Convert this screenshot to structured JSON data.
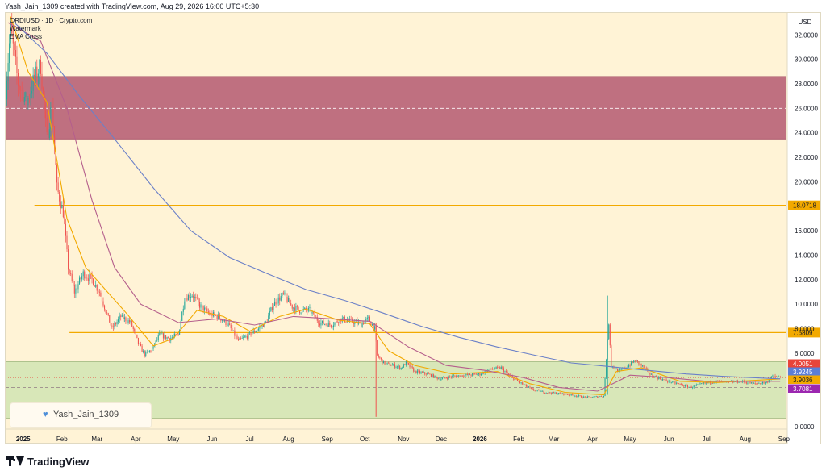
{
  "header": {
    "text": "Yash_Jain_1309 created with TradingView.com, Aug 29, 2026 16:00 UTC+5:30"
  },
  "indicators": {
    "symbol_line": "ORDIUSD · 1D · Crypto.com",
    "line2": "Watermark",
    "line3": "EMA Cross"
  },
  "currency": "USD",
  "author_badge": {
    "icon": "heart-icon",
    "name": "Yash_Jain_1309"
  },
  "footer": {
    "logo": "tradingview-logo-icon",
    "brand": "TradingView"
  },
  "chart_data": {
    "type": "candlestick",
    "symbol": "ORDIUSD",
    "timeframe": "1D",
    "xlim": [
      "2024-12-18",
      "2026-09-03"
    ],
    "ylim": [
      -0.2,
      33.8
    ],
    "y_ticks": [
      0,
      2,
      4,
      6,
      8,
      10,
      12,
      14,
      16,
      18,
      20,
      22,
      24,
      26,
      28,
      30,
      32
    ],
    "y_tick_labels": [
      "0.0000",
      "",
      "",
      "6.0000",
      "8.0000",
      "10.0000",
      "12.0000",
      "14.0000",
      "16.0000",
      "",
      "20.0000",
      "22.0000",
      "24.0000",
      "26.0000",
      "28.0000",
      "30.0000",
      "32.0000"
    ],
    "x_ticks": [
      {
        "label": "2025",
        "date": "2025-01-01"
      },
      {
        "label": "Feb",
        "date": "2025-02-01"
      },
      {
        "label": "Mar",
        "date": "2025-03-01"
      },
      {
        "label": "Apr",
        "date": "2025-04-01"
      },
      {
        "label": "May",
        "date": "2025-05-01"
      },
      {
        "label": "Jun",
        "date": "2025-06-01"
      },
      {
        "label": "Jul",
        "date": "2025-07-01"
      },
      {
        "label": "Aug",
        "date": "2025-08-01"
      },
      {
        "label": "Sep",
        "date": "2025-09-01"
      },
      {
        "label": "Oct",
        "date": "2025-10-01"
      },
      {
        "label": "Nov",
        "date": "2025-11-01"
      },
      {
        "label": "Dec",
        "date": "2025-12-01"
      },
      {
        "label": "2026",
        "date": "2026-01-01"
      },
      {
        "label": "Feb",
        "date": "2026-02-01"
      },
      {
        "label": "Mar",
        "date": "2026-03-01"
      },
      {
        "label": "Apr",
        "date": "2026-04-01"
      },
      {
        "label": "May",
        "date": "2026-05-01"
      },
      {
        "label": "Jun",
        "date": "2026-06-01"
      },
      {
        "label": "Jul",
        "date": "2026-07-01"
      },
      {
        "label": "Aug",
        "date": "2026-08-01"
      },
      {
        "label": "Sep",
        "date": "2026-09-01"
      }
    ],
    "zones": [
      {
        "name": "supply-zone",
        "y_low": 23.5,
        "y_high": 28.6,
        "x_start": "2024-12-18",
        "color": "#bf7080",
        "midline": 26.0
      },
      {
        "name": "demand-zone",
        "y_low": 0.7,
        "y_high": 5.3,
        "x_start": "2024-12-18",
        "color": "#d8e7b8",
        "midline": 3.2
      }
    ],
    "horizontal_levels": [
      {
        "value": 18.0718,
        "label": "18.0718",
        "x_start": "2025-01-10",
        "color": "#f2a900"
      },
      {
        "value": 7.6809,
        "label": "7.6809",
        "x_start": "2025-02-07",
        "color": "#f2a900"
      }
    ],
    "price_labels": [
      {
        "value": 4.0051,
        "label": "4.0051",
        "color": "#e8443a"
      },
      {
        "value": 3.9245,
        "label": "3.9245",
        "color": "#5b7ed6"
      },
      {
        "value": 3.9036,
        "label": "3.9036",
        "color": "#f2a900"
      },
      {
        "value": 3.7081,
        "label": "3.7081",
        "color": "#9c27b0"
      }
    ],
    "series": [
      {
        "name": "close",
        "kind": "price",
        "color_up": "#26a69a",
        "color_down": "#ef5350",
        "points": [
          [
            "2024-12-18",
            27.5
          ],
          [
            "2024-12-22",
            32.5
          ],
          [
            "2024-12-28",
            28.0
          ],
          [
            "2025-01-04",
            26.5
          ],
          [
            "2025-01-10",
            28.5
          ],
          [
            "2025-01-15",
            29.5
          ],
          [
            "2025-01-20",
            23.5
          ],
          [
            "2025-01-24",
            26.5
          ],
          [
            "2025-01-28",
            19.5
          ],
          [
            "2025-02-02",
            17.5
          ],
          [
            "2025-02-06",
            13.0
          ],
          [
            "2025-02-11",
            11.0
          ],
          [
            "2025-02-18",
            12.5
          ],
          [
            "2025-02-25",
            12.0
          ],
          [
            "2025-03-03",
            11.0
          ],
          [
            "2025-03-08",
            9.5
          ],
          [
            "2025-03-13",
            8.0
          ],
          [
            "2025-03-20",
            9.0
          ],
          [
            "2025-03-28",
            8.5
          ],
          [
            "2025-04-03",
            6.8
          ],
          [
            "2025-04-08",
            5.9
          ],
          [
            "2025-04-14",
            6.3
          ],
          [
            "2025-04-20",
            7.5
          ],
          [
            "2025-04-28",
            7.2
          ],
          [
            "2025-05-05",
            7.5
          ],
          [
            "2025-05-10",
            10.5
          ],
          [
            "2025-05-16",
            10.8
          ],
          [
            "2025-05-22",
            9.9
          ],
          [
            "2025-05-30",
            9.2
          ],
          [
            "2025-06-06",
            9.0
          ],
          [
            "2025-06-14",
            8.3
          ],
          [
            "2025-06-22",
            7.0
          ],
          [
            "2025-07-01",
            7.5
          ],
          [
            "2025-07-08",
            8.0
          ],
          [
            "2025-07-14",
            8.5
          ],
          [
            "2025-07-20",
            10.0
          ],
          [
            "2025-07-28",
            10.8
          ],
          [
            "2025-08-04",
            9.8
          ],
          [
            "2025-08-10",
            9.5
          ],
          [
            "2025-08-18",
            9.5
          ],
          [
            "2025-08-26",
            8.5
          ],
          [
            "2025-09-04",
            8.3
          ],
          [
            "2025-09-12",
            8.8
          ],
          [
            "2025-09-20",
            8.6
          ],
          [
            "2025-09-28",
            8.4
          ],
          [
            "2025-10-04",
            8.8
          ],
          [
            "2025-10-09",
            8.0
          ],
          [
            "2025-10-11",
            5.8
          ],
          [
            "2025-10-16",
            5.2
          ],
          [
            "2025-10-24",
            5.0
          ],
          [
            "2025-10-30",
            4.8
          ],
          [
            "2025-11-03",
            5.2
          ],
          [
            "2025-11-10",
            4.5
          ],
          [
            "2025-11-20",
            4.3
          ],
          [
            "2025-11-30",
            3.9
          ],
          [
            "2025-12-10",
            4.1
          ],
          [
            "2025-12-20",
            4.2
          ],
          [
            "2026-01-01",
            4.3
          ],
          [
            "2026-01-10",
            4.7
          ],
          [
            "2026-01-18",
            4.8
          ],
          [
            "2026-01-24",
            4.2
          ],
          [
            "2026-02-02",
            3.6
          ],
          [
            "2026-02-12",
            3.0
          ],
          [
            "2026-02-22",
            2.8
          ],
          [
            "2026-03-05",
            2.7
          ],
          [
            "2026-03-15",
            2.6
          ],
          [
            "2026-03-25",
            2.4
          ],
          [
            "2026-04-01",
            2.4
          ],
          [
            "2026-04-10",
            2.5
          ],
          [
            "2026-04-14",
            8.5
          ],
          [
            "2026-04-16",
            5.0
          ],
          [
            "2026-04-22",
            4.5
          ],
          [
            "2026-04-30",
            5.0
          ],
          [
            "2026-05-05",
            5.4
          ],
          [
            "2026-05-10",
            5.0
          ],
          [
            "2026-05-18",
            4.2
          ],
          [
            "2026-05-28",
            3.8
          ],
          [
            "2026-06-08",
            3.5
          ],
          [
            "2026-06-18",
            3.2
          ],
          [
            "2026-06-28",
            3.5
          ],
          [
            "2026-07-08",
            3.7
          ],
          [
            "2026-07-18",
            3.6
          ],
          [
            "2026-07-28",
            3.7
          ],
          [
            "2026-08-08",
            3.5
          ],
          [
            "2026-08-18",
            3.6
          ],
          [
            "2026-08-22",
            4.1
          ],
          [
            "2026-08-29",
            4.0
          ]
        ]
      },
      {
        "name": "ema-fast",
        "color": "#f2a900",
        "points": [
          [
            "2024-12-22",
            33.5
          ],
          [
            "2025-01-05",
            29.0
          ],
          [
            "2025-01-20",
            26.5
          ],
          [
            "2025-02-05",
            17.0
          ],
          [
            "2025-02-20",
            13.0
          ],
          [
            "2025-03-05",
            11.5
          ],
          [
            "2025-03-25",
            9.2
          ],
          [
            "2025-04-15",
            6.6
          ],
          [
            "2025-05-01",
            7.2
          ],
          [
            "2025-05-20",
            9.5
          ],
          [
            "2025-06-10",
            9.0
          ],
          [
            "2025-07-01",
            7.8
          ],
          [
            "2025-07-25",
            9.0
          ],
          [
            "2025-08-15",
            9.6
          ],
          [
            "2025-09-10",
            8.7
          ],
          [
            "2025-10-05",
            8.4
          ],
          [
            "2025-10-20",
            6.2
          ],
          [
            "2025-11-10",
            5.0
          ],
          [
            "2025-12-10",
            4.3
          ],
          [
            "2026-01-15",
            4.5
          ],
          [
            "2026-02-10",
            3.5
          ],
          [
            "2026-03-10",
            2.8
          ],
          [
            "2026-04-10",
            2.6
          ],
          [
            "2026-04-20",
            4.5
          ],
          [
            "2026-05-10",
            4.8
          ],
          [
            "2026-06-10",
            3.7
          ],
          [
            "2026-07-10",
            3.6
          ],
          [
            "2026-08-29",
            3.9
          ]
        ]
      },
      {
        "name": "ema-slow",
        "color": "#b55f8c",
        "points": [
          [
            "2024-12-20",
            33.0
          ],
          [
            "2025-01-15",
            31.5
          ],
          [
            "2025-02-05",
            26.0
          ],
          [
            "2025-02-25",
            18.5
          ],
          [
            "2025-03-15",
            13.0
          ],
          [
            "2025-04-05",
            10.0
          ],
          [
            "2025-05-05",
            8.5
          ],
          [
            "2025-06-05",
            8.8
          ],
          [
            "2025-07-05",
            8.3
          ],
          [
            "2025-08-05",
            9.0
          ],
          [
            "2025-09-05",
            8.8
          ],
          [
            "2025-10-05",
            8.6
          ],
          [
            "2025-11-05",
            6.5
          ],
          [
            "2025-12-05",
            5.0
          ],
          [
            "2026-01-05",
            4.6
          ],
          [
            "2026-02-05",
            4.0
          ],
          [
            "2026-03-05",
            3.2
          ],
          [
            "2026-04-05",
            2.9
          ],
          [
            "2026-05-01",
            4.2
          ],
          [
            "2026-06-01",
            4.0
          ],
          [
            "2026-07-01",
            3.7
          ],
          [
            "2026-08-29",
            3.7
          ]
        ]
      },
      {
        "name": "ema-long",
        "color": "#6b80c8",
        "points": [
          [
            "2024-12-25",
            33.0
          ],
          [
            "2025-01-20",
            30.5
          ],
          [
            "2025-02-15",
            27.0
          ],
          [
            "2025-03-15",
            23.5
          ],
          [
            "2025-04-15",
            19.5
          ],
          [
            "2025-05-15",
            16.0
          ],
          [
            "2025-06-15",
            13.8
          ],
          [
            "2025-07-15",
            12.5
          ],
          [
            "2025-08-15",
            11.2
          ],
          [
            "2025-09-15",
            10.3
          ],
          [
            "2025-10-15",
            9.3
          ],
          [
            "2025-11-15",
            8.2
          ],
          [
            "2025-12-15",
            7.3
          ],
          [
            "2026-01-15",
            6.5
          ],
          [
            "2026-02-15",
            5.8
          ],
          [
            "2026-03-15",
            5.2
          ],
          [
            "2026-04-15",
            4.9
          ],
          [
            "2026-05-15",
            4.6
          ],
          [
            "2026-06-15",
            4.3
          ],
          [
            "2026-07-15",
            4.1
          ],
          [
            "2026-08-29",
            3.9
          ]
        ]
      }
    ]
  }
}
